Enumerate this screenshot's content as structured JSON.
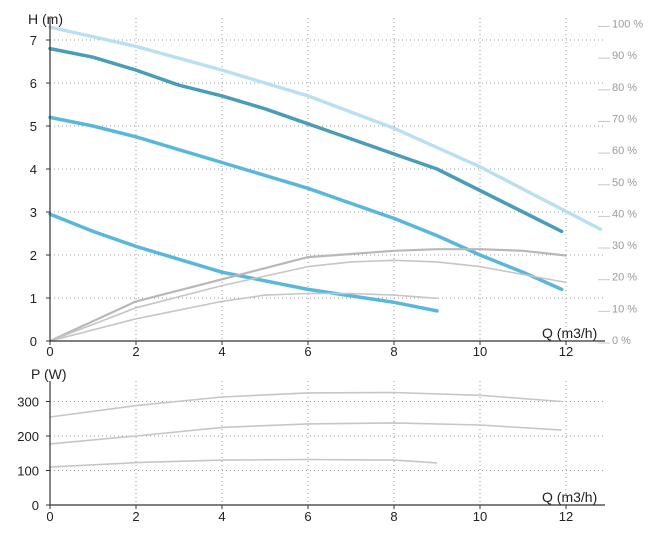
{
  "chart_data": [
    {
      "type": "line",
      "xlabel": "Q (m3/h)",
      "ylabel": "H (m)",
      "y2label_ticks": [
        "0 %",
        "10 %",
        "20 %",
        "30 %",
        "40 %",
        "50 %",
        "60 %",
        "70 %",
        "80 %",
        "90 %",
        "100 %"
      ],
      "xlim": [
        0,
        12
      ],
      "ylim": [
        0,
        7.3
      ],
      "y2lim": [
        0,
        100
      ],
      "x_ticks": [
        "0",
        "2",
        "4",
        "6",
        "8",
        "10",
        "12"
      ],
      "y_ticks": [
        "0",
        "1",
        "2",
        "3",
        "4",
        "5",
        "6",
        "7"
      ],
      "grid": true,
      "series": [
        {
          "axis": "H",
          "style": "head",
          "color": "#4a9cb8",
          "x": [
            0,
            1,
            2,
            3,
            4,
            5,
            6,
            7,
            8,
            9,
            10,
            11,
            11.9
          ],
          "y": [
            6.8,
            6.6,
            6.3,
            5.95,
            5.7,
            5.4,
            5.05,
            4.7,
            4.35,
            4.0,
            3.5,
            3.0,
            2.55
          ]
        },
        {
          "axis": "H",
          "style": "head",
          "color": "#5ab7dc",
          "x": [
            0,
            1,
            2,
            3,
            4,
            5,
            6,
            7,
            8,
            9,
            10,
            11,
            11.9
          ],
          "y": [
            5.2,
            5.0,
            4.75,
            4.45,
            4.15,
            3.85,
            3.55,
            3.2,
            2.85,
            2.45,
            2.0,
            1.6,
            1.2
          ]
        },
        {
          "axis": "H",
          "style": "head",
          "color": "#5ab7dc",
          "x": [
            0,
            1,
            2,
            3,
            4,
            5,
            6,
            7,
            8,
            9
          ],
          "y": [
            2.95,
            2.55,
            2.2,
            1.9,
            1.6,
            1.4,
            1.2,
            1.05,
            0.9,
            0.7
          ]
        },
        {
          "axis": "H",
          "style": "head-dotted",
          "color": "#b9dff0",
          "x": [
            0,
            2,
            4,
            6,
            8,
            10,
            12.8
          ],
          "y": [
            7.3,
            6.85,
            6.3,
            5.7,
            4.95,
            4.05,
            2.6
          ]
        },
        {
          "axis": "eff",
          "style": "efficiency",
          "color": "#b8b8b8",
          "x": [
            0,
            2,
            4,
            5,
            6,
            7,
            8,
            9,
            10,
            11,
            12
          ],
          "y": [
            0,
            12.5,
            19.5,
            23,
            26.5,
            27.5,
            28.5,
            29,
            29,
            28.5,
            27
          ]
        },
        {
          "axis": "eff",
          "style": "efficiency",
          "color": "#c6c6c6",
          "x": [
            0,
            2,
            4,
            6,
            7,
            8,
            9,
            10,
            11,
            12
          ],
          "y": [
            0,
            10.5,
            17.5,
            23.5,
            25,
            25.5,
            25,
            23.5,
            21,
            18.5
          ]
        },
        {
          "axis": "eff",
          "style": "efficiency",
          "color": "#c6c6c6",
          "x": [
            0,
            2,
            4,
            5,
            6,
            7,
            8,
            9
          ],
          "y": [
            0,
            7,
            12.5,
            14.5,
            15,
            15,
            14.5,
            13.5
          ]
        }
      ]
    },
    {
      "type": "line",
      "xlabel": "Q (m3/h)",
      "ylabel": "P (W)",
      "xlim": [
        0,
        12
      ],
      "ylim": [
        0,
        340
      ],
      "x_ticks": [
        "0",
        "2",
        "4",
        "6",
        "8",
        "10",
        "12"
      ],
      "y_ticks": [
        "0",
        "100",
        "200",
        "300"
      ],
      "grid": true,
      "series": [
        {
          "color": "#c6c6c6",
          "x": [
            0,
            2,
            4,
            6,
            8,
            10,
            11.9
          ],
          "y": [
            255,
            288,
            313,
            325,
            326,
            318,
            300
          ]
        },
        {
          "color": "#c6c6c6",
          "x": [
            0,
            2,
            4,
            6,
            8,
            10,
            11.9
          ],
          "y": [
            177,
            200,
            225,
            235,
            238,
            232,
            217
          ]
        },
        {
          "color": "#c6c6c6",
          "x": [
            0,
            2,
            4,
            6,
            8,
            9
          ],
          "y": [
            110,
            123,
            130,
            132,
            130,
            122
          ]
        }
      ]
    }
  ]
}
